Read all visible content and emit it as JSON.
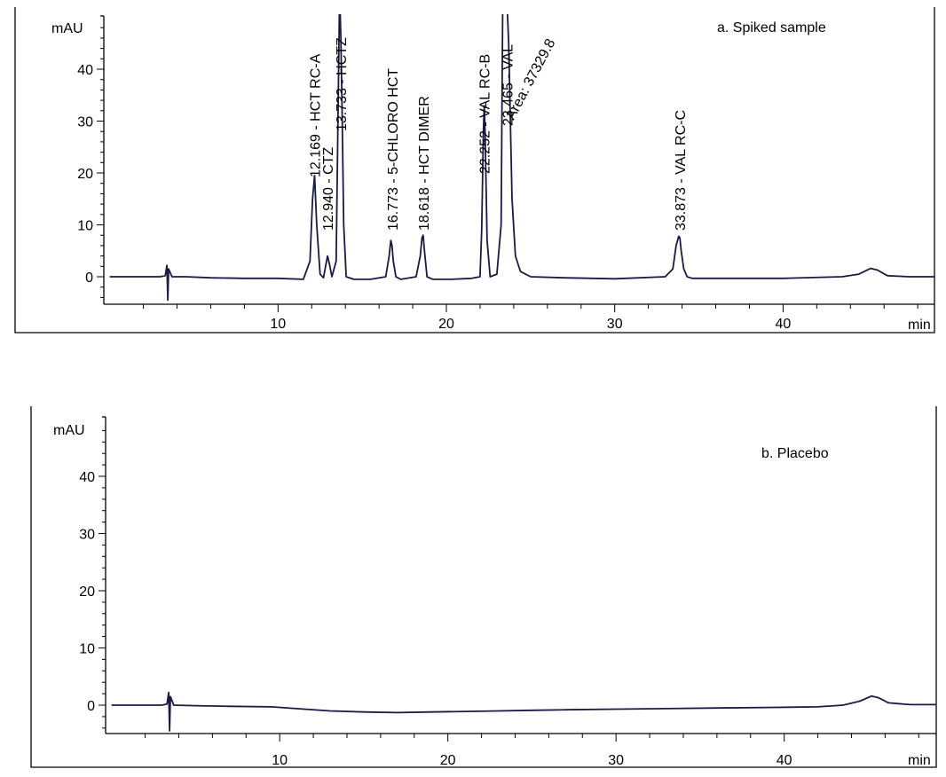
{
  "chart_data": [
    {
      "type": "line",
      "panel_label": "a. Spiked sample",
      "ylabel": "mAU",
      "xlabel": "min",
      "xlim": [
        0,
        49
      ],
      "ylim": [
        -5,
        50
      ],
      "x_ticks": [
        10,
        20,
        30,
        40
      ],
      "y_ticks": [
        0,
        10,
        20,
        30,
        40
      ],
      "series": [
        {
          "x": [
            0,
            3.0,
            3.3,
            3.4,
            3.45,
            3.5,
            3.7,
            4.5,
            6,
            8,
            10,
            11.5,
            11.9,
            12.05,
            12.17,
            12.3,
            12.5,
            12.7,
            12.85,
            12.94,
            13.05,
            13.2,
            13.45,
            13.58,
            13.66,
            13.73,
            13.8,
            13.9,
            14.05,
            14.5,
            15.5,
            16.4,
            16.6,
            16.7,
            16.77,
            16.85,
            17.0,
            17.3,
            18.2,
            18.45,
            18.55,
            18.62,
            18.7,
            18.85,
            19.2,
            20.3,
            21.5,
            22.0,
            22.1,
            22.2,
            22.25,
            22.3,
            22.42,
            22.6,
            23.0,
            23.25,
            23.35,
            23.47,
            23.6,
            23.7,
            23.8,
            23.9,
            24.1,
            24.4,
            25.0,
            27,
            30,
            33.0,
            33.45,
            33.65,
            33.8,
            33.87,
            33.95,
            34.1,
            34.3,
            34.6,
            36,
            40,
            43.5,
            44.5,
            45.2,
            45.6,
            46.2,
            47.5,
            49
          ],
          "values": [
            0,
            0,
            0.2,
            2.2,
            -4.5,
            1.5,
            0,
            0,
            -0.2,
            -0.3,
            -0.3,
            -0.5,
            3,
            15,
            19.5,
            10,
            0.5,
            -0.2,
            2.5,
            4,
            2.5,
            0,
            3,
            35,
            55,
            46,
            33,
            10,
            0,
            -0.5,
            -0.5,
            0,
            4,
            7,
            6,
            3,
            0,
            -0.5,
            0,
            4,
            7.5,
            8,
            5,
            0,
            -0.5,
            -0.5,
            -0.3,
            0,
            9,
            28,
            33,
            28,
            7,
            0,
            0.5,
            10,
            55,
            55,
            53,
            45,
            30,
            15,
            4,
            1,
            0,
            -0.2,
            -0.4,
            0,
            1.5,
            6,
            7.8,
            7.5,
            5,
            1.5,
            0,
            -0.3,
            -0.3,
            -0.3,
            0,
            0.5,
            1.6,
            1.3,
            0.2,
            0,
            0
          ]
        }
      ],
      "annotations": [
        {
          "x": 12.169,
          "text": "12.169 - HCT RC-A"
        },
        {
          "x": 12.94,
          "text": "12.940 - CTZ"
        },
        {
          "x": 13.733,
          "text": "13.733 - HCTZ"
        },
        {
          "x": 16.773,
          "text": "16.773 - 5-CHLORO HCT"
        },
        {
          "x": 18.618,
          "text": "18.618 - HCT DIMER"
        },
        {
          "x": 22.252,
          "text": "22.252 - VAL RC-B"
        },
        {
          "x": 23.465,
          "text": "23.465 - VAL"
        },
        {
          "x": 23.465,
          "text": "Area: 37329.8"
        },
        {
          "x": 33.873,
          "text": "33.873 - VAL RC-C"
        }
      ]
    },
    {
      "type": "line",
      "panel_label": "b. Placebo",
      "ylabel": "mAU",
      "xlabel": "min",
      "xlim": [
        0,
        49
      ],
      "ylim": [
        -5,
        50
      ],
      "x_ticks": [
        10,
        20,
        30,
        40
      ],
      "y_ticks": [
        0,
        10,
        20,
        30,
        40
      ],
      "series": [
        {
          "x": [
            0,
            3.0,
            3.3,
            3.4,
            3.45,
            3.5,
            3.7,
            5,
            7,
            9.5,
            11,
            13,
            15,
            17,
            19,
            21,
            23,
            25,
            27,
            30,
            33,
            36,
            39,
            42,
            43.5,
            44.5,
            45.2,
            45.6,
            46.2,
            47.5,
            49
          ],
          "values": [
            0,
            0,
            0.2,
            2.2,
            -4.5,
            1.5,
            0,
            -0.1,
            -0.2,
            -0.3,
            -0.6,
            -1.0,
            -1.2,
            -1.3,
            -1.2,
            -1.1,
            -1.0,
            -0.9,
            -0.8,
            -0.7,
            -0.6,
            -0.5,
            -0.4,
            -0.3,
            0,
            0.7,
            1.6,
            1.3,
            0.4,
            0.1,
            0.1
          ]
        }
      ],
      "annotations": []
    }
  ]
}
